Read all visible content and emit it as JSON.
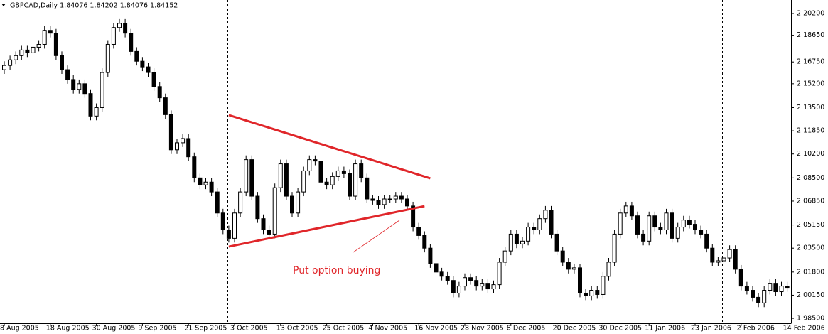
{
  "chart_data": {
    "type": "candlestick",
    "title": "GBPCAD,Daily  1.84076 1.84202 1.84076 1.84152",
    "annotation": "Put option buying",
    "categories": [
      "8 Aug 2005",
      null,
      null,
      null,
      null,
      null,
      null,
      null,
      "18 Aug 2005",
      null,
      null,
      null,
      null,
      null,
      null,
      null,
      "30 Aug 2005",
      null,
      null,
      null,
      null,
      null,
      null,
      null,
      "9 Sep 2005",
      null,
      null,
      null,
      null,
      null,
      null,
      null,
      "21 Sep 2005",
      null,
      null,
      null,
      null,
      null,
      null,
      null,
      "3 Oct 2005",
      null,
      null,
      null,
      null,
      null,
      null,
      null,
      "13 Oct 2005",
      null,
      null,
      null,
      null,
      null,
      null,
      null,
      "25 Oct 2005",
      null,
      null,
      null,
      null,
      null,
      null,
      null,
      "4 Nov 2005",
      null,
      null,
      null,
      null,
      null,
      null,
      null,
      "16 Nov 2005",
      null,
      null,
      null,
      null,
      null,
      null,
      null,
      "28 Nov 2005",
      null,
      null,
      null,
      null,
      null,
      null,
      null,
      "8 Dec 2005",
      null,
      null,
      null,
      null,
      null,
      null,
      null,
      "20 Dec 2005",
      null,
      null,
      null,
      null,
      null,
      null,
      null,
      "30 Dec 2005",
      null,
      null,
      null,
      null,
      null,
      null,
      null,
      "11 Jan 2006",
      null,
      null,
      null,
      null,
      null,
      null,
      null,
      "23 Jan 2006",
      null,
      null,
      null,
      null,
      null,
      null,
      null,
      "2 Feb 2006",
      null,
      null,
      null,
      null,
      null,
      null,
      null,
      "14 Feb 2006"
    ],
    "open": [
      2.162,
      2.165,
      2.169,
      2.172,
      2.176,
      2.174,
      2.178,
      2.18,
      2.19,
      2.188,
      2.172,
      2.162,
      2.155,
      2.148,
      2.152,
      2.145,
      2.129,
      2.135,
      2.16,
      2.18,
      2.192,
      2.195,
      2.188,
      2.175,
      2.168,
      2.164,
      2.16,
      2.15,
      2.142,
      2.13,
      2.105,
      2.11,
      2.113,
      2.1,
      2.085,
      2.08,
      2.082,
      2.075,
      2.06,
      2.048,
      2.042,
      2.06,
      2.075,
      2.098,
      2.072,
      2.056,
      2.048,
      2.045,
      2.078,
      2.095,
      2.072,
      2.06,
      2.075,
      2.09,
      2.098,
      2.097,
      2.082,
      2.08,
      2.086,
      2.09,
      2.088,
      2.072,
      2.095,
      2.085,
      2.07,
      2.069,
      2.066,
      2.07,
      2.07,
      2.072,
      2.07,
      2.065,
      2.05,
      2.044,
      2.035,
      2.024,
      2.018,
      2.015,
      2.012,
      2.003,
      2.008,
      2.014,
      2.012,
      2.008,
      2.01,
      2.006,
      2.009,
      2.025,
      2.033,
      2.045,
      2.038,
      2.04,
      2.05,
      2.048,
      2.056,
      2.062,
      2.045,
      2.033,
      2.025,
      2.02,
      2.021,
      2.003,
      2.001,
      2.005,
      2.002,
      2.015,
      2.025,
      2.045,
      2.06,
      2.065,
      2.058,
      2.045,
      2.04,
      2.058,
      2.05,
      2.048,
      2.06,
      2.042,
      2.05,
      2.055,
      2.052,
      2.048,
      2.045,
      2.035,
      2.025,
      2.026,
      2.028,
      2.034,
      2.02,
      2.008,
      2.005,
      2.0,
      1.996,
      2.005,
      2.01,
      2.004,
      2.008
    ],
    "high": [
      2.168,
      2.172,
      2.175,
      2.179,
      2.179,
      2.181,
      2.183,
      2.193,
      2.193,
      2.191,
      2.175,
      2.165,
      2.158,
      2.155,
      2.155,
      2.148,
      2.138,
      2.163,
      2.183,
      2.195,
      2.198,
      2.198,
      2.191,
      2.178,
      2.171,
      2.167,
      2.163,
      2.153,
      2.145,
      2.133,
      2.113,
      2.116,
      2.116,
      2.103,
      2.088,
      2.085,
      2.085,
      2.078,
      2.063,
      2.051,
      2.063,
      2.078,
      2.101,
      2.101,
      2.075,
      2.059,
      2.051,
      2.081,
      2.098,
      2.098,
      2.075,
      2.078,
      2.093,
      2.101,
      2.101,
      2.1,
      2.085,
      2.089,
      2.093,
      2.093,
      2.091,
      2.098,
      2.098,
      2.088,
      2.073,
      2.072,
      2.073,
      2.073,
      2.075,
      2.075,
      2.073,
      2.068,
      2.053,
      2.047,
      2.038,
      2.027,
      2.021,
      2.018,
      2.015,
      2.011,
      2.017,
      2.017,
      2.015,
      2.013,
      2.013,
      2.012,
      2.028,
      2.036,
      2.048,
      2.048,
      2.043,
      2.053,
      2.053,
      2.059,
      2.065,
      2.065,
      2.048,
      2.036,
      2.028,
      2.024,
      2.024,
      2.006,
      2.008,
      2.008,
      2.018,
      2.028,
      2.048,
      2.063,
      2.068,
      2.068,
      2.061,
      2.048,
      2.061,
      2.061,
      2.053,
      2.063,
      2.063,
      2.053,
      2.058,
      2.058,
      2.055,
      2.051,
      2.048,
      2.038,
      2.029,
      2.031,
      2.037,
      2.037,
      2.023,
      2.011,
      2.008,
      2.003,
      2.008,
      2.013,
      2.013,
      2.011,
      2.011
    ],
    "low": [
      2.159,
      2.162,
      2.166,
      2.169,
      2.171,
      2.171,
      2.175,
      2.177,
      2.185,
      2.169,
      2.159,
      2.152,
      2.145,
      2.145,
      2.142,
      2.126,
      2.126,
      2.132,
      2.157,
      2.177,
      2.189,
      2.185,
      2.172,
      2.165,
      2.161,
      2.157,
      2.147,
      2.139,
      2.127,
      2.102,
      2.102,
      2.107,
      2.097,
      2.082,
      2.077,
      2.077,
      2.072,
      2.057,
      2.045,
      2.039,
      2.039,
      2.057,
      2.072,
      2.069,
      2.053,
      2.045,
      2.042,
      2.042,
      2.075,
      2.069,
      2.057,
      2.057,
      2.072,
      2.087,
      2.094,
      2.079,
      2.077,
      2.077,
      2.083,
      2.085,
      2.069,
      2.069,
      2.082,
      2.067,
      2.066,
      2.063,
      2.063,
      2.067,
      2.067,
      2.067,
      2.062,
      2.047,
      2.041,
      2.032,
      2.021,
      2.015,
      2.012,
      2.009,
      2.0,
      2.0,
      2.005,
      2.009,
      2.005,
      2.005,
      2.003,
      2.003,
      2.006,
      2.022,
      2.03,
      2.035,
      2.035,
      2.037,
      2.045,
      2.045,
      2.053,
      2.042,
      2.03,
      2.022,
      2.017,
      2.017,
      2.0,
      1.998,
      1.998,
      1.999,
      1.999,
      2.012,
      2.022,
      2.042,
      2.057,
      2.055,
      2.042,
      2.037,
      2.037,
      2.047,
      2.045,
      2.045,
      2.039,
      2.039,
      2.047,
      2.049,
      2.045,
      2.042,
      2.032,
      2.022,
      2.022,
      2.023,
      2.025,
      2.017,
      2.005,
      2.002,
      1.997,
      1.993,
      1.993,
      2.002,
      2.001,
      2.001,
      2.004
    ],
    "close": [
      2.165,
      2.169,
      2.172,
      2.176,
      2.174,
      2.178,
      2.18,
      2.19,
      2.188,
      2.172,
      2.162,
      2.155,
      2.148,
      2.152,
      2.145,
      2.129,
      2.135,
      2.16,
      2.18,
      2.192,
      2.195,
      2.188,
      2.175,
      2.168,
      2.164,
      2.16,
      2.15,
      2.142,
      2.13,
      2.105,
      2.11,
      2.113,
      2.1,
      2.085,
      2.08,
      2.082,
      2.075,
      2.06,
      2.048,
      2.042,
      2.06,
      2.075,
      2.098,
      2.072,
      2.056,
      2.048,
      2.045,
      2.078,
      2.095,
      2.072,
      2.06,
      2.075,
      2.09,
      2.098,
      2.097,
      2.082,
      2.08,
      2.086,
      2.09,
      2.088,
      2.072,
      2.095,
      2.085,
      2.07,
      2.069,
      2.066,
      2.07,
      2.07,
      2.072,
      2.07,
      2.065,
      2.05,
      2.044,
      2.035,
      2.024,
      2.018,
      2.015,
      2.012,
      2.003,
      2.008,
      2.014,
      2.012,
      2.008,
      2.01,
      2.006,
      2.009,
      2.025,
      2.033,
      2.045,
      2.038,
      2.04,
      2.05,
      2.048,
      2.056,
      2.062,
      2.045,
      2.033,
      2.025,
      2.02,
      2.021,
      2.003,
      2.001,
      2.005,
      2.002,
      2.015,
      2.025,
      2.045,
      2.06,
      2.065,
      2.058,
      2.045,
      2.04,
      2.058,
      2.05,
      2.048,
      2.06,
      2.042,
      2.05,
      2.055,
      2.052,
      2.048,
      2.045,
      2.035,
      2.025,
      2.026,
      2.028,
      2.034,
      2.02,
      2.008,
      2.005,
      2.0,
      1.996,
      2.005,
      2.01,
      2.004,
      2.008,
      2.007
    ],
    "trendlines": [
      {
        "color": "#e0262a",
        "x": [
          39,
          74
        ],
        "y": [
          2.1297,
          2.0847
        ]
      },
      {
        "color": "#e0262a",
        "x": [
          39,
          73
        ],
        "y": [
          2.0361,
          2.0649
        ]
      }
    ],
    "ylim": [
      1.9815,
      2.2116
    ],
    "yticks": [
      {
        "value": 2.202,
        "label": "2.20200"
      },
      {
        "value": 2.1865,
        "label": "2.18650"
      },
      {
        "value": 2.1675,
        "label": "2.16750"
      },
      {
        "value": 2.152,
        "label": "2.15200"
      },
      {
        "value": 2.135,
        "label": "2.13500"
      },
      {
        "value": 2.1185,
        "label": "2.11850"
      },
      {
        "value": 2.102,
        "label": "2.10200"
      },
      {
        "value": 2.085,
        "label": "2.08500"
      },
      {
        "value": 2.0685,
        "label": "2.06850"
      },
      {
        "value": 2.0515,
        "label": "2.05150"
      },
      {
        "value": 2.035,
        "label": "2.03500"
      },
      {
        "value": 2.018,
        "label": "2.01800"
      },
      {
        "value": 2.0015,
        "label": "2.00150"
      },
      {
        "value": 1.985,
        "label": "1.98500"
      }
    ]
  }
}
